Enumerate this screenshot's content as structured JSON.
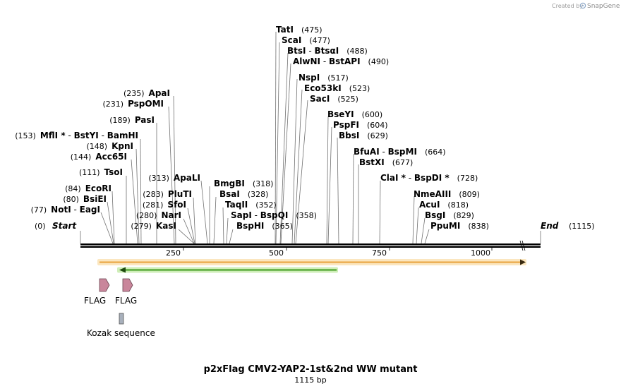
{
  "header": {
    "credit": "Created by",
    "brand": "SnapGene"
  },
  "map": {
    "title": "p2xFlag CMV2-YAP2-1st&2nd WW mutant",
    "length_label": "1115 bp",
    "start": {
      "name": "Start",
      "pos": "(0)"
    },
    "end": {
      "name": "End",
      "pos": "(1115)"
    },
    "ticks": [
      "250",
      "500",
      "750",
      "1000"
    ]
  },
  "sites": [
    {
      "id": "noti",
      "parts": [
        "NotI",
        "EagI"
      ],
      "pos": "(77)"
    },
    {
      "id": "bsiei",
      "parts": [
        "BsiEI"
      ],
      "pos": "(80)"
    },
    {
      "id": "ecori",
      "parts": [
        "EcoRI"
      ],
      "pos": "(84)"
    },
    {
      "id": "tsoi",
      "parts": [
        "TsoI"
      ],
      "pos": "(111)"
    },
    {
      "id": "acc65i",
      "parts": [
        "Acc65I"
      ],
      "pos": "(144)"
    },
    {
      "id": "kpni",
      "parts": [
        "KpnI"
      ],
      "pos": "(148)"
    },
    {
      "id": "mfli",
      "parts": [
        "MflI *",
        "BstYI",
        "BamHI"
      ],
      "pos": "(153)"
    },
    {
      "id": "pasi",
      "parts": [
        "PasI"
      ],
      "pos": "(189)"
    },
    {
      "id": "pspomi",
      "parts": [
        "PspOMI"
      ],
      "pos": "(231)"
    },
    {
      "id": "apai",
      "parts": [
        "ApaI"
      ],
      "pos": "(235)"
    },
    {
      "id": "kasi",
      "parts": [
        "KasI"
      ],
      "pos": "(279)"
    },
    {
      "id": "nari",
      "parts": [
        "NarI"
      ],
      "pos": "(280)"
    },
    {
      "id": "sfoi",
      "parts": [
        "SfoI"
      ],
      "pos": "(281)"
    },
    {
      "id": "pluti",
      "parts": [
        "PluTI"
      ],
      "pos": "(283)"
    },
    {
      "id": "apali",
      "parts": [
        "ApaLI"
      ],
      "pos": "(313)"
    },
    {
      "id": "bmgbi",
      "parts": [
        "BmgBI"
      ],
      "pos": "(318)"
    },
    {
      "id": "bsai",
      "parts": [
        "BsaI"
      ],
      "pos": "(328)"
    },
    {
      "id": "taqii",
      "parts": [
        "TaqII"
      ],
      "pos": "(352)"
    },
    {
      "id": "sapi",
      "parts": [
        "SapI",
        "BspQI"
      ],
      "pos": "(358)"
    },
    {
      "id": "bsphi",
      "parts": [
        "BspHI"
      ],
      "pos": "(365)"
    },
    {
      "id": "tati",
      "parts": [
        "TatI"
      ],
      "pos": "(475)"
    },
    {
      "id": "scai",
      "parts": [
        "ScaI"
      ],
      "pos": "(477)"
    },
    {
      "id": "btsi",
      "parts": [
        "BtsI",
        "BtsαI"
      ],
      "pos": "(488)"
    },
    {
      "id": "alwni",
      "parts": [
        "AlwNI",
        "BstAPI"
      ],
      "pos": "(490)"
    },
    {
      "id": "nspi",
      "parts": [
        "NspI"
      ],
      "pos": "(517)"
    },
    {
      "id": "eco53ki",
      "parts": [
        "Eco53kI"
      ],
      "pos": "(523)"
    },
    {
      "id": "saci",
      "parts": [
        "SacI"
      ],
      "pos": "(525)"
    },
    {
      "id": "bseyi",
      "parts": [
        "BseYI"
      ],
      "pos": "(600)"
    },
    {
      "id": "pspfi",
      "parts": [
        "PspFI"
      ],
      "pos": "(604)"
    },
    {
      "id": "bbsi",
      "parts": [
        "BbsI"
      ],
      "pos": "(629)"
    },
    {
      "id": "bfuai",
      "parts": [
        "BfuAI",
        "BspMI"
      ],
      "pos": "(664)"
    },
    {
      "id": "bstxi",
      "parts": [
        "BstXI"
      ],
      "pos": "(677)"
    },
    {
      "id": "clai",
      "parts": [
        "ClaI *",
        "BspDI *"
      ],
      "pos": "(728)"
    },
    {
      "id": "nmeaiii",
      "parts": [
        "NmeAIII"
      ],
      "pos": "(809)"
    },
    {
      "id": "acui",
      "parts": [
        "AcuI"
      ],
      "pos": "(818)"
    },
    {
      "id": "bsgi",
      "parts": [
        "BsgI"
      ],
      "pos": "(829)"
    },
    {
      "id": "ppumi",
      "parts": [
        "PpuMI"
      ],
      "pos": "(838)"
    }
  ],
  "features": {
    "flag1": "FLAG",
    "flag2": "FLAG",
    "kozak": "Kozak sequence"
  },
  "colors": {
    "orange_arrow": "#e8a33c",
    "green_arrow": "#3c9a1e",
    "flag_fill": "#c9869b",
    "kozak_fill": "#a8b0bc"
  }
}
